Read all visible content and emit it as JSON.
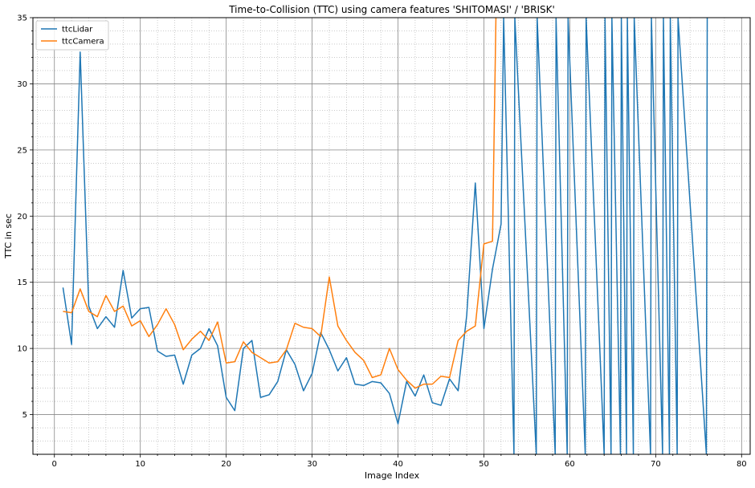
{
  "chart_data": {
    "type": "line",
    "title": "Time-to-Collision (TTC) using camera features 'SHITOMASI' / 'BRISK'",
    "xlabel": "Image Index",
    "ylabel": "TTC in sec",
    "xlim": [
      -2.5,
      81
    ],
    "ylim": [
      2,
      35
    ],
    "x_ticks": [
      0,
      10,
      20,
      30,
      40,
      50,
      60,
      70,
      80
    ],
    "y_ticks": [
      5,
      10,
      15,
      20,
      25,
      30,
      35
    ],
    "grid": true,
    "legend_position": "top-left",
    "series": [
      {
        "name": "ttcLidar",
        "color": "#1f77b4",
        "points": [
          [
            1,
            14.6
          ],
          [
            2,
            10.3
          ],
          [
            3,
            32.4
          ],
          [
            4,
            13.2
          ],
          [
            5,
            11.5
          ],
          [
            6,
            12.4
          ],
          [
            7,
            11.6
          ],
          [
            8,
            15.9
          ],
          [
            9,
            12.3
          ],
          [
            10,
            13.0
          ],
          [
            11,
            13.1
          ],
          [
            12,
            9.8
          ],
          [
            13,
            9.4
          ],
          [
            14,
            9.5
          ],
          [
            15,
            7.3
          ],
          [
            16,
            9.5
          ],
          [
            17,
            10.0
          ],
          [
            18,
            11.5
          ],
          [
            19,
            10.2
          ],
          [
            20,
            6.3
          ],
          [
            21,
            5.3
          ],
          [
            22,
            10.0
          ],
          [
            23,
            10.6
          ],
          [
            24,
            6.3
          ],
          [
            25,
            6.5
          ],
          [
            26,
            7.5
          ],
          [
            27,
            9.9
          ],
          [
            28,
            8.8
          ],
          [
            29,
            6.8
          ],
          [
            30,
            8.1
          ],
          [
            31,
            11.2
          ],
          [
            32,
            9.9
          ],
          [
            33,
            8.3
          ],
          [
            34,
            9.3
          ],
          [
            35,
            7.3
          ],
          [
            36,
            7.2
          ],
          [
            37,
            7.5
          ],
          [
            38,
            7.4
          ],
          [
            39,
            6.6
          ],
          [
            40,
            4.3
          ],
          [
            41,
            7.5
          ],
          [
            42,
            6.4
          ],
          [
            43,
            8.0
          ],
          [
            44,
            5.9
          ],
          [
            45,
            5.7
          ],
          [
            46,
            7.7
          ],
          [
            47,
            6.8
          ],
          [
            48,
            12.5
          ],
          [
            49,
            22.5
          ],
          [
            50,
            11.5
          ],
          [
            51,
            16.0
          ],
          [
            52,
            19.4
          ],
          [
            52.3,
            35.0
          ],
          [
            53.5,
            2.0
          ],
          [
            53.6,
            35.0
          ],
          [
            56.1,
            2.0
          ],
          [
            56.2,
            35.0
          ],
          [
            58.3,
            2.0
          ],
          [
            58.4,
            35.0
          ],
          [
            59.7,
            2.0
          ],
          [
            59.8,
            35.0
          ],
          [
            61.8,
            2.0
          ],
          [
            61.9,
            35.0
          ],
          [
            64.0,
            2.0
          ],
          [
            64.1,
            35.0
          ],
          [
            64.8,
            2.0
          ],
          [
            64.9,
            35.0
          ],
          [
            65.9,
            2.0
          ],
          [
            66.0,
            35.0
          ],
          [
            66.6,
            2.0
          ],
          [
            66.7,
            35.0
          ],
          [
            67.4,
            2.0
          ],
          [
            67.5,
            35.0
          ],
          [
            69.4,
            2.0
          ],
          [
            69.5,
            35.0
          ],
          [
            70.8,
            2.0
          ],
          [
            70.9,
            35.0
          ],
          [
            71.6,
            2.0
          ],
          [
            71.7,
            35.0
          ],
          [
            72.5,
            2.0
          ],
          [
            72.6,
            35.0
          ],
          [
            75.9,
            2.0
          ],
          [
            76.0,
            35.0
          ]
        ]
      },
      {
        "name": "ttcCamera",
        "color": "#ff7f0e",
        "points": [
          [
            1,
            12.8
          ],
          [
            2,
            12.7
          ],
          [
            3,
            14.5
          ],
          [
            4,
            12.8
          ],
          [
            5,
            12.4
          ],
          [
            6,
            14.0
          ],
          [
            7,
            12.8
          ],
          [
            8,
            13.2
          ],
          [
            9,
            11.7
          ],
          [
            10,
            12.1
          ],
          [
            11,
            10.9
          ],
          [
            12,
            11.8
          ],
          [
            13,
            13.0
          ],
          [
            14,
            11.8
          ],
          [
            15,
            9.9
          ],
          [
            16,
            10.7
          ],
          [
            17,
            11.3
          ],
          [
            18,
            10.6
          ],
          [
            19,
            12.0
          ],
          [
            20,
            8.9
          ],
          [
            21,
            9.0
          ],
          [
            22,
            10.5
          ],
          [
            23,
            9.7
          ],
          [
            24,
            9.3
          ],
          [
            25,
            8.9
          ],
          [
            26,
            9.0
          ],
          [
            27,
            9.9
          ],
          [
            28,
            11.9
          ],
          [
            29,
            11.6
          ],
          [
            30,
            11.5
          ],
          [
            31,
            10.9
          ],
          [
            32,
            15.4
          ],
          [
            33,
            11.7
          ],
          [
            34,
            10.6
          ],
          [
            35,
            9.7
          ],
          [
            36,
            9.1
          ],
          [
            37,
            7.8
          ],
          [
            38,
            8.0
          ],
          [
            39,
            10.0
          ],
          [
            40,
            8.4
          ],
          [
            41,
            7.6
          ],
          [
            42,
            7.0
          ],
          [
            43,
            7.3
          ],
          [
            44,
            7.3
          ],
          [
            45,
            7.9
          ],
          [
            46,
            7.8
          ],
          [
            47,
            10.6
          ],
          [
            48,
            11.3
          ],
          [
            49,
            11.7
          ],
          [
            50,
            17.9
          ],
          [
            51,
            18.1
          ],
          [
            51.4,
            35.0
          ]
        ]
      }
    ]
  }
}
